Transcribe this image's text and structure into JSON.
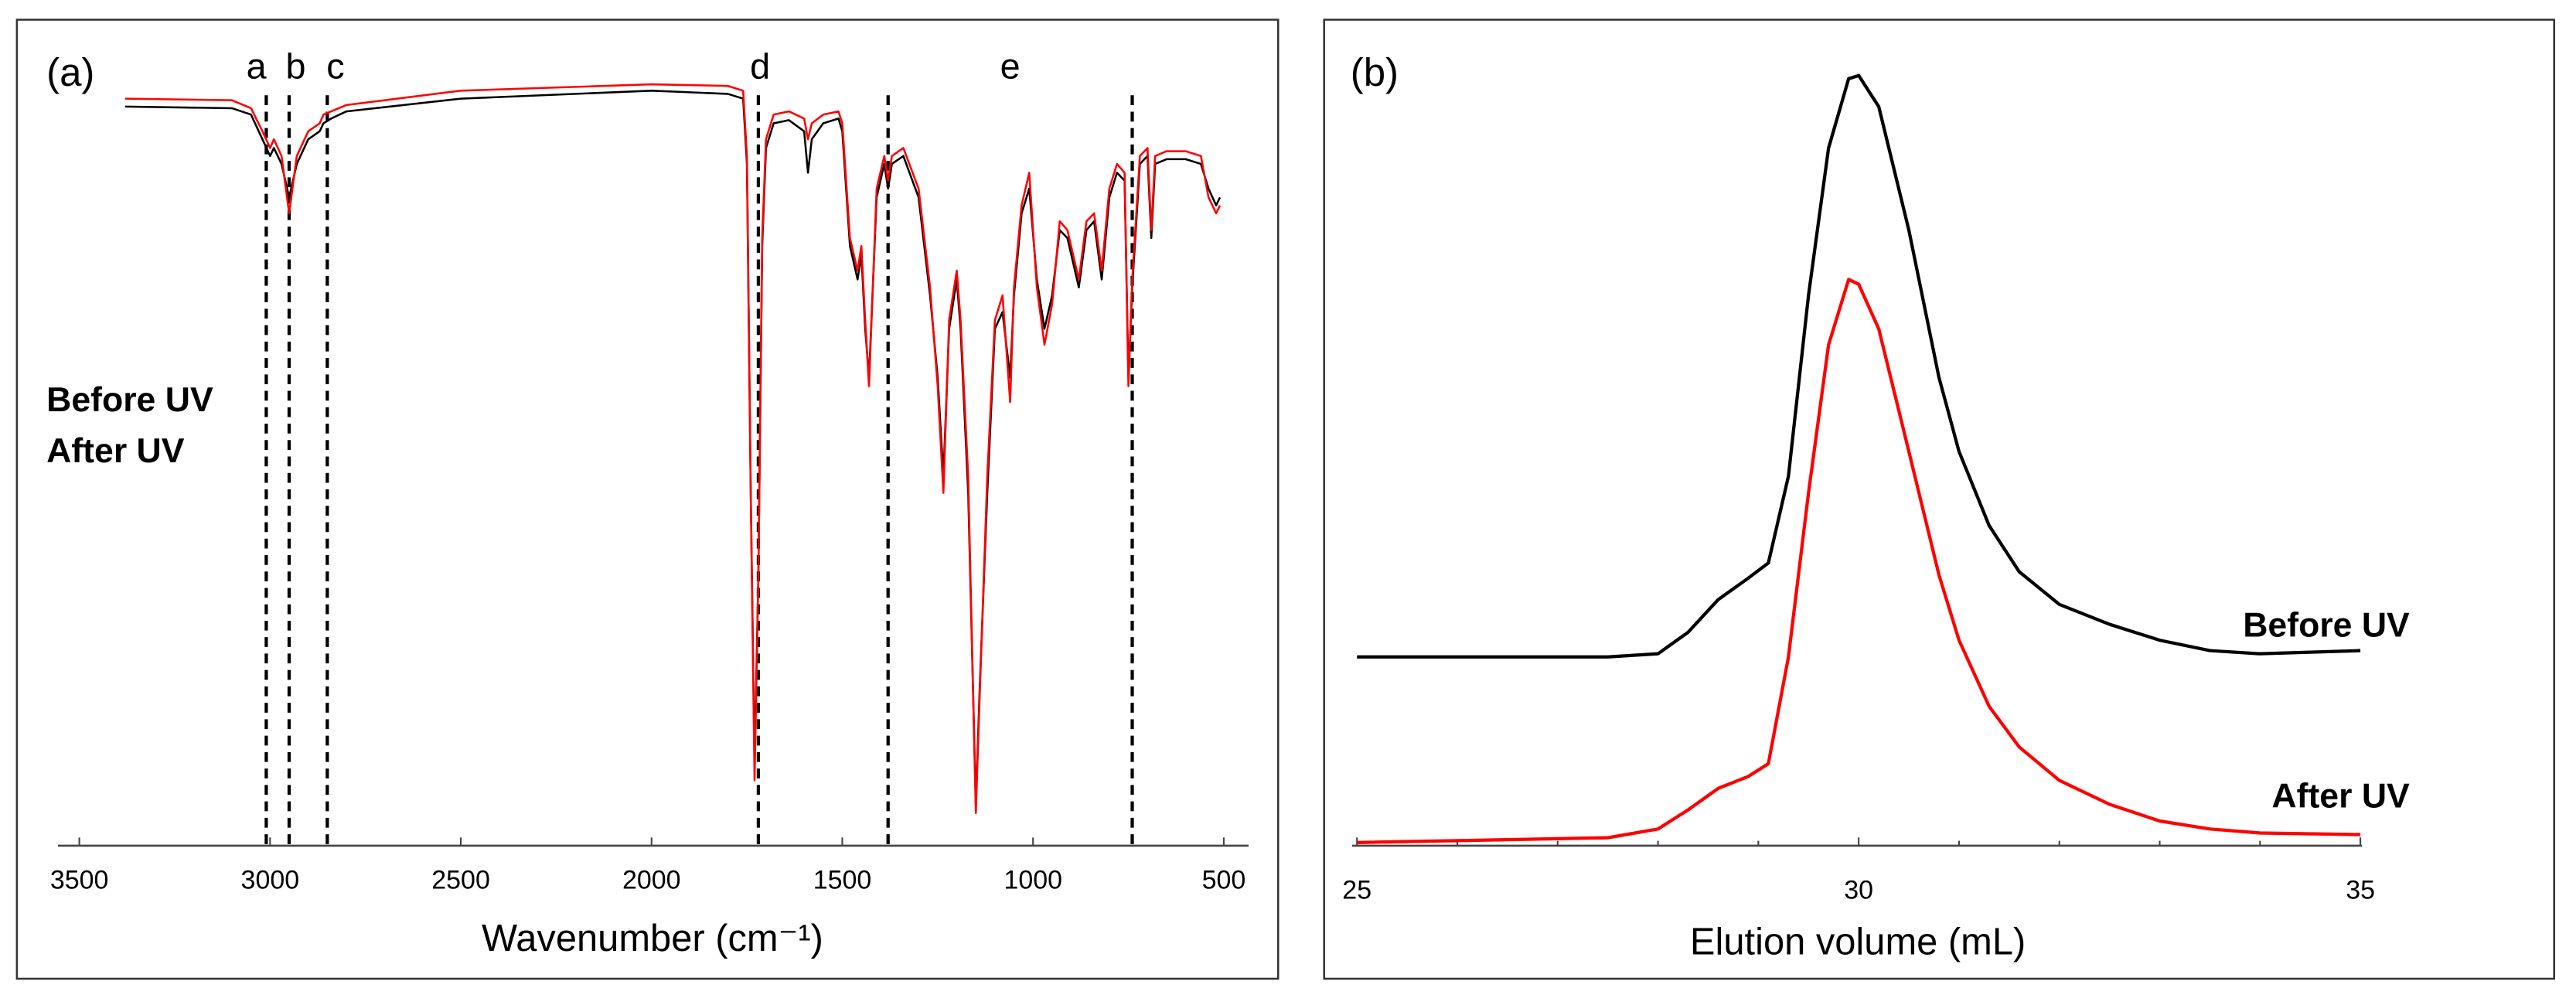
{
  "chart_data": [
    {
      "type": "line",
      "title": "(a)",
      "xlabel": "Wavenumber (cm⁻¹)",
      "xlim": [
        3556,
        435
      ],
      "ylim": [
        0,
        100
      ],
      "xticks": [
        3500,
        3000,
        2500,
        2000,
        1500,
        1000,
        500
      ],
      "grid": false,
      "legend": "left",
      "x": [
        3380,
        3100,
        3050,
        3020,
        3000,
        2990,
        2970,
        2950,
        2930,
        2900,
        2870,
        2860,
        2840,
        2800,
        2500,
        2000,
        1800,
        1760,
        1750,
        1740,
        1730,
        1720,
        1710,
        1700,
        1680,
        1640,
        1600,
        1590,
        1580,
        1550,
        1510,
        1500,
        1480,
        1460,
        1450,
        1440,
        1430,
        1410,
        1390,
        1380,
        1370,
        1340,
        1300,
        1270,
        1250,
        1235,
        1220,
        1200,
        1190,
        1170,
        1150,
        1140,
        1120,
        1100,
        1080,
        1060,
        1050,
        1030,
        1010,
        990,
        970,
        950,
        930,
        910,
        880,
        860,
        840,
        820,
        800,
        780,
        760,
        750,
        740,
        720,
        700,
        690,
        680,
        650,
        600,
        560,
        540,
        520,
        510
      ],
      "series": [
        {
          "name": "Before UV",
          "color": "#000000",
          "values": [
            92.8,
            92.6,
            91.8,
            88.7,
            86.6,
            87.6,
            85.6,
            81.4,
            85.6,
            88.7,
            89.7,
            90.7,
            91.3,
            92.2,
            93.8,
            94.8,
            94.4,
            93.8,
            85.6,
            44.3,
            10.3,
            34.0,
            75.3,
            87.6,
            90.7,
            91.1,
            89.7,
            84.5,
            88.7,
            90.7,
            91.3,
            89.7,
            75.3,
            71.1,
            74.2,
            64.9,
            58.8,
            81.4,
            85.6,
            82.5,
            85.6,
            86.6,
            81.4,
            69.1,
            58.8,
            46.4,
            64.9,
            71.1,
            64.9,
            44.3,
            5.2,
            19.6,
            44.3,
            64.9,
            67.0,
            58.8,
            69.1,
            79.4,
            82.5,
            71.1,
            64.9,
            69.1,
            77.3,
            76.3,
            70.1,
            77.3,
            78.4,
            71.1,
            81.4,
            84.5,
            83.5,
            58.8,
            70.1,
            85.6,
            86.6,
            76.3,
            85.6,
            86.2,
            86.2,
            85.6,
            82.5,
            80.4,
            81.4
          ]
        },
        {
          "name": "After UV",
          "color": "#ff0000",
          "values": [
            93.8,
            93.6,
            92.6,
            89.7,
            87.6,
            88.7,
            86.6,
            79.4,
            86.6,
            89.7,
            90.7,
            91.8,
            92.2,
            93.0,
            94.8,
            95.6,
            95.4,
            94.8,
            86.6,
            44.3,
            8.2,
            34.0,
            76.3,
            88.7,
            91.8,
            92.2,
            91.3,
            88.7,
            90.7,
            91.8,
            92.2,
            90.7,
            76.3,
            72.2,
            75.3,
            66.0,
            57.7,
            82.5,
            86.6,
            83.5,
            86.6,
            87.6,
            82.5,
            70.1,
            57.7,
            44.3,
            66.0,
            72.2,
            66.0,
            46.4,
            4.1,
            18.6,
            46.4,
            66.0,
            69.1,
            55.7,
            70.1,
            80.4,
            84.5,
            70.1,
            62.9,
            68.0,
            78.4,
            77.3,
            71.1,
            78.4,
            79.4,
            72.2,
            82.5,
            85.6,
            84.5,
            57.7,
            71.1,
            86.6,
            87.6,
            77.3,
            86.6,
            87.2,
            87.2,
            86.6,
            81.4,
            79.4,
            80.4
          ]
        }
      ],
      "annotations": [
        {
          "label": "a",
          "x": [
            3010
          ]
        },
        {
          "label": "b",
          "x": [
            2950
          ]
        },
        {
          "label": "c",
          "x": [
            2850
          ]
        },
        {
          "label": "d",
          "x": [
            1720
          ]
        },
        {
          "label": "e",
          "x": [
            1380,
            740
          ]
        }
      ]
    },
    {
      "type": "line",
      "title": "(b)",
      "xlabel": "Elution volume (mL)",
      "xlim": [
        25,
        35
      ],
      "ylim": [
        0,
        100
      ],
      "xticks": [
        25,
        30,
        35
      ],
      "minor_xticks": [
        26,
        27,
        28,
        29,
        31,
        32,
        33,
        34
      ],
      "grid": false,
      "legend": "inline",
      "x": [
        25.0,
        27.5,
        28.0,
        28.3,
        28.6,
        28.9,
        29.1,
        29.3,
        29.5,
        29.7,
        29.9,
        30.0,
        30.2,
        30.5,
        30.8,
        31.0,
        31.3,
        31.6,
        32.0,
        32.5,
        33.0,
        33.5,
        34.0,
        35.0
      ],
      "series": [
        {
          "name": "Before UV",
          "color": "#000000",
          "values": [
            23.7,
            23.7,
            24.1,
            26.8,
            30.9,
            33.6,
            35.5,
            46.4,
            69.1,
            87.6,
            96.3,
            96.7,
            92.8,
            77.3,
            58.8,
            49.5,
            40.2,
            34.4,
            30.3,
            27.8,
            25.8,
            24.5,
            24.1,
            24.5
          ]
        },
        {
          "name": "After UV",
          "color": "#ff0000",
          "values": [
            0.4,
            1.0,
            2.1,
            4.5,
            7.2,
            8.7,
            10.3,
            23.7,
            44.3,
            62.9,
            71.1,
            70.5,
            64.9,
            49.5,
            34.0,
            25.8,
            17.5,
            12.4,
            8.2,
            5.2,
            3.1,
            2.1,
            1.6,
            1.4
          ]
        }
      ]
    }
  ]
}
